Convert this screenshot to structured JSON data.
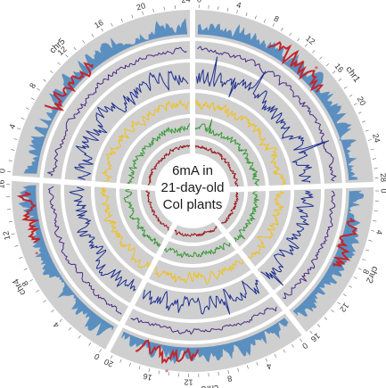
{
  "center_label": {
    "line1": "6mA in",
    "line2": "21-day-old",
    "line3": "Col plants"
  },
  "chromosomes": [
    {
      "name": "chr1",
      "ticks": [
        "0",
        "4",
        "8",
        "12",
        "16",
        "20",
        "24",
        "28"
      ]
    },
    {
      "name": "chr2",
      "ticks": [
        "0",
        "4",
        "8",
        "12",
        "16"
      ]
    },
    {
      "name": "chr3",
      "ticks": [
        "0",
        "4",
        "8",
        "12",
        "16",
        "20"
      ]
    },
    {
      "name": "chr4",
      "ticks": [
        "0",
        "4",
        "8",
        "12",
        "16"
      ]
    },
    {
      "name": "chr5",
      "ticks": [
        "0",
        "4",
        "8",
        "12",
        "16",
        "20",
        "24"
      ]
    }
  ],
  "colors": {
    "ring_background": "#cfcfcf",
    "track_outer_blue": "#5b8fc0",
    "track_outer_red": "#c0272d",
    "track_purple": "#4b2a86",
    "track_navy": "#1f2f8f",
    "track_yellow": "#f0c020",
    "track_green": "#3a9a3a",
    "track_darkred": "#9b1c20"
  }
}
